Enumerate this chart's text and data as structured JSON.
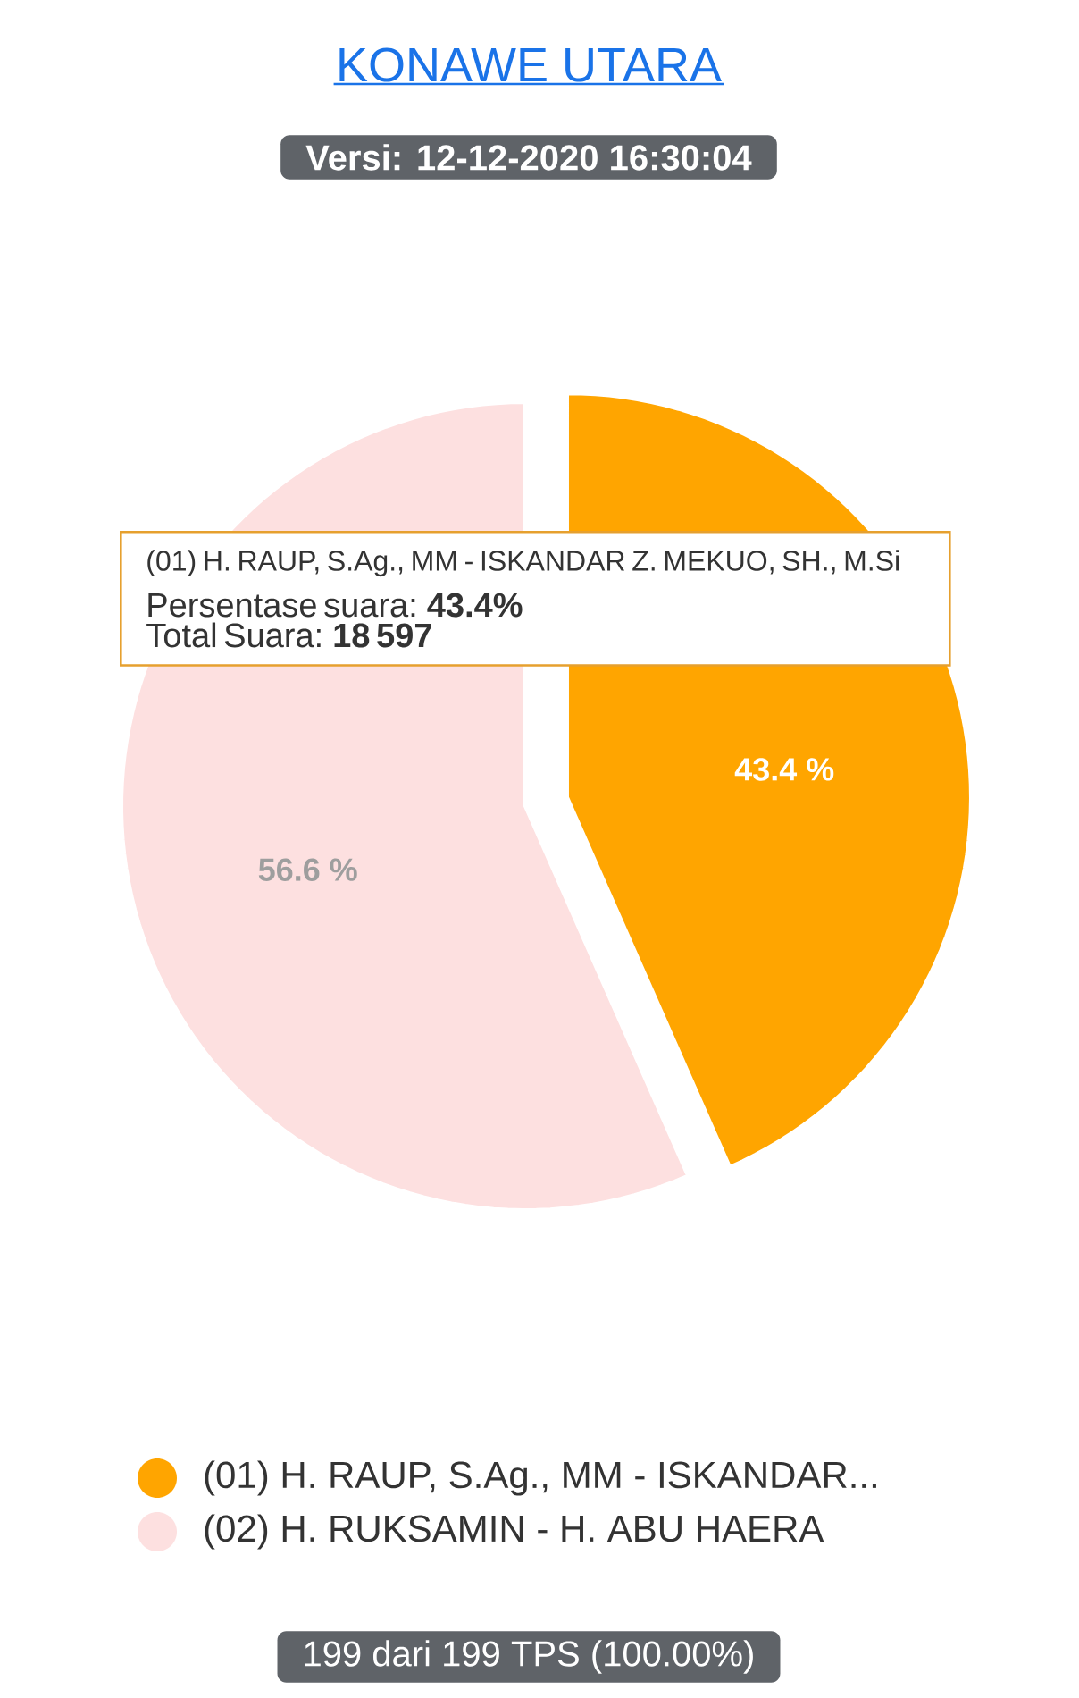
{
  "chart_data": {
    "type": "pie",
    "title": "KONAWE UTARA",
    "subtitle": "Versi: 12-12-2020 16:30:04",
    "categories": [
      "(01) H. RAUP, S.Ag., MM - ISKANDAR...",
      "(02) H. RUKSAMIN - H. ABU HAERA"
    ],
    "values": [
      43.4,
      56.6
    ],
    "colors": [
      "#ffa500",
      "#fde0e0"
    ],
    "value_labels": [
      "43.4 %",
      "56.6 %"
    ],
    "legend": "bottom",
    "annotations": [
      "(01) H. RAUP, S.Ag., MM - ISKANDAR Z. MEKUO, SH., M.Si",
      "Persentase suara: **43.4%**",
      "Total Suara: **18 597**",
      "199 dari 199 TPS (100.00%)"
    ]
  }
}
